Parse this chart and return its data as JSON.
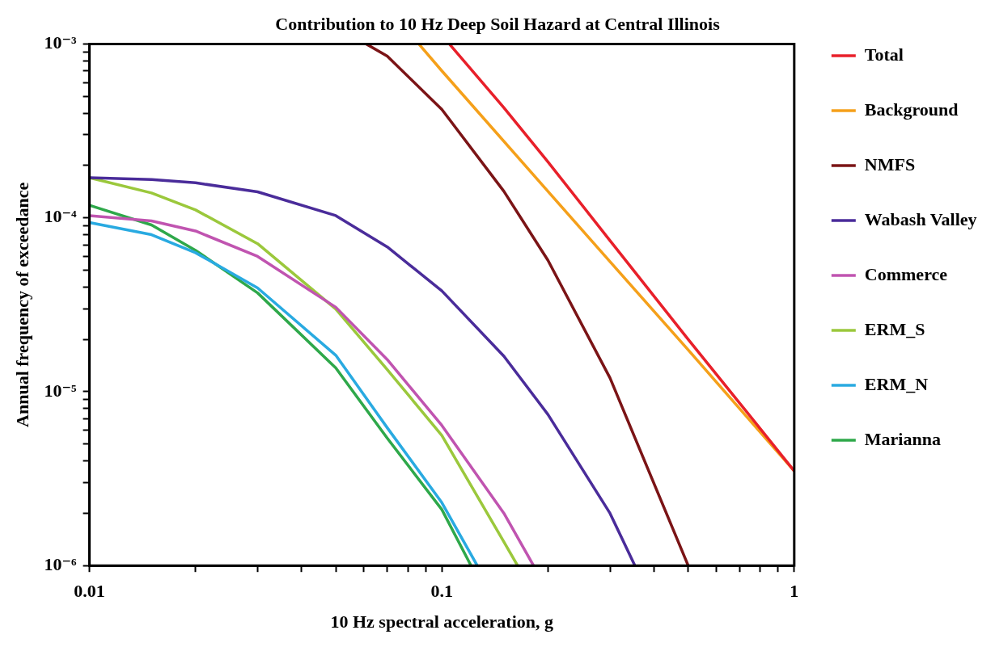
{
  "chart_data": {
    "type": "line",
    "title": "Contribution to 10 Hz Deep Soil Hazard at Central Illinois",
    "xlabel": "10 Hz spectral acceleration, g",
    "ylabel": "Annual frequency of exceedance",
    "log": "xy",
    "grid": false,
    "legend": "right",
    "marker": "none",
    "line_style": "solid",
    "xlim": [
      0.01,
      1
    ],
    "ylim": [
      1e-06,
      0.001
    ],
    "xticks": [
      0.01,
      {
        "value": 0.02,
        "label": null
      },
      {
        "value": 0.03,
        "label": null
      },
      {
        "value": 0.04,
        "label": null
      },
      {
        "value": 0.05,
        "label": null
      },
      {
        "value": 0.06,
        "label": null
      },
      {
        "value": 0.07,
        "label": null
      },
      {
        "value": 0.08,
        "label": null
      },
      {
        "value": 0.09,
        "label": null
      },
      0.1,
      {
        "value": 0.2,
        "label": null
      },
      {
        "value": 0.3,
        "label": null
      },
      {
        "value": 0.4,
        "label": null
      },
      {
        "value": 0.5,
        "label": null
      },
      {
        "value": 0.6,
        "label": null
      },
      {
        "value": 0.7,
        "label": null
      },
      {
        "value": 0.8,
        "label": null
      },
      {
        "value": 0.9,
        "label": null
      },
      1
    ],
    "yticks": [
      {
        "value": 1e-06,
        "label": "10⁻⁶"
      },
      {
        "value": 2e-06,
        "label": null
      },
      {
        "value": 3e-06,
        "label": null
      },
      {
        "value": 4e-06,
        "label": null
      },
      {
        "value": 5e-06,
        "label": null
      },
      {
        "value": 6e-06,
        "label": null
      },
      {
        "value": 7e-06,
        "label": null
      },
      {
        "value": 8e-06,
        "label": null
      },
      {
        "value": 9e-06,
        "label": null
      },
      {
        "value": 1e-05,
        "label": "10⁻⁵"
      },
      {
        "value": 2e-05,
        "label": null
      },
      {
        "value": 3e-05,
        "label": null
      },
      {
        "value": 4e-05,
        "label": null
      },
      {
        "value": 5e-05,
        "label": null
      },
      {
        "value": 6e-05,
        "label": null
      },
      {
        "value": 7e-05,
        "label": null
      },
      {
        "value": 8e-05,
        "label": null
      },
      {
        "value": 9e-05,
        "label": null
      },
      {
        "value": 0.0001,
        "label": "10⁻⁴"
      },
      {
        "value": 0.0002,
        "label": null
      },
      {
        "value": 0.0003,
        "label": null
      },
      {
        "value": 0.0004,
        "label": null
      },
      {
        "value": 0.0005,
        "label": null
      },
      {
        "value": 0.0006,
        "label": null
      },
      {
        "value": 0.0007,
        "label": null
      },
      {
        "value": 0.0008,
        "label": null
      },
      {
        "value": 0.0009,
        "label": null
      },
      {
        "value": 0.001,
        "label": "10⁻³"
      }
    ],
    "series": [
      {
        "name": "Total",
        "color": "#e8202a",
        "x": [
          0.105,
          0.15,
          0.2,
          0.3,
          0.5,
          0.7,
          1
        ],
        "values": [
          0.001,
          0.00043,
          0.00021,
          7.4e-05,
          2e-05,
          8.6e-06,
          3.5e-06
        ]
      },
      {
        "name": "Background",
        "color": "#f5a01a",
        "x": [
          0.086,
          0.1,
          0.2,
          0.3,
          0.5,
          1
        ],
        "values": [
          0.001,
          0.0007,
          0.000142,
          5.6e-05,
          1.74e-05,
          3.5e-06
        ]
      },
      {
        "name": "NMFS",
        "color": "#7b1416",
        "x": [
          0.061,
          0.07,
          0.1,
          0.15,
          0.2,
          0.3,
          0.5
        ],
        "values": [
          0.001,
          0.00085,
          0.00042,
          0.000142,
          5.7e-05,
          1.2e-05,
          1e-06
        ]
      },
      {
        "name": "Wabash Valley",
        "color": "#4a2c9a",
        "x": [
          0.01,
          0.015,
          0.02,
          0.03,
          0.05,
          0.07,
          0.1,
          0.15,
          0.2,
          0.3,
          0.353
        ],
        "values": [
          0.00017,
          0.000166,
          0.000159,
          0.000141,
          0.000103,
          6.8e-05,
          3.8e-05,
          1.6e-05,
          7.4e-06,
          2e-06,
          1e-06
        ]
      },
      {
        "name": "Commerce",
        "color": "#c054b0",
        "x": [
          0.01,
          0.015,
          0.02,
          0.03,
          0.05,
          0.07,
          0.1,
          0.15,
          0.182
        ],
        "values": [
          0.000103,
          9.6e-05,
          8.4e-05,
          6e-05,
          3.06e-05,
          1.53e-05,
          6.4e-06,
          2e-06,
          1e-06
        ]
      },
      {
        "name": "ERM_S",
        "color": "#9bc83c",
        "x": [
          0.01,
          0.015,
          0.02,
          0.03,
          0.05,
          0.07,
          0.1,
          0.15,
          0.164
        ],
        "values": [
          0.00017,
          0.000139,
          0.000111,
          7.1e-05,
          2.99e-05,
          1.34e-05,
          5.6e-06,
          1.37e-06,
          1e-06
        ]
      },
      {
        "name": "ERM_N",
        "color": "#29aae1",
        "x": [
          0.01,
          0.015,
          0.02,
          0.03,
          0.05,
          0.07,
          0.1,
          0.126
        ],
        "values": [
          9.4e-05,
          8e-05,
          6.3e-05,
          3.95e-05,
          1.62e-05,
          6.2e-06,
          2.3e-06,
          1e-06
        ]
      },
      {
        "name": "Marianna",
        "color": "#2ea84a",
        "x": [
          0.01,
          0.015,
          0.02,
          0.03,
          0.05,
          0.07,
          0.1,
          0.121
        ],
        "values": [
          0.000118,
          9.1e-05,
          6.5e-05,
          3.7e-05,
          1.37e-05,
          5.4e-06,
          2.1e-06,
          1e-06
        ]
      }
    ]
  }
}
